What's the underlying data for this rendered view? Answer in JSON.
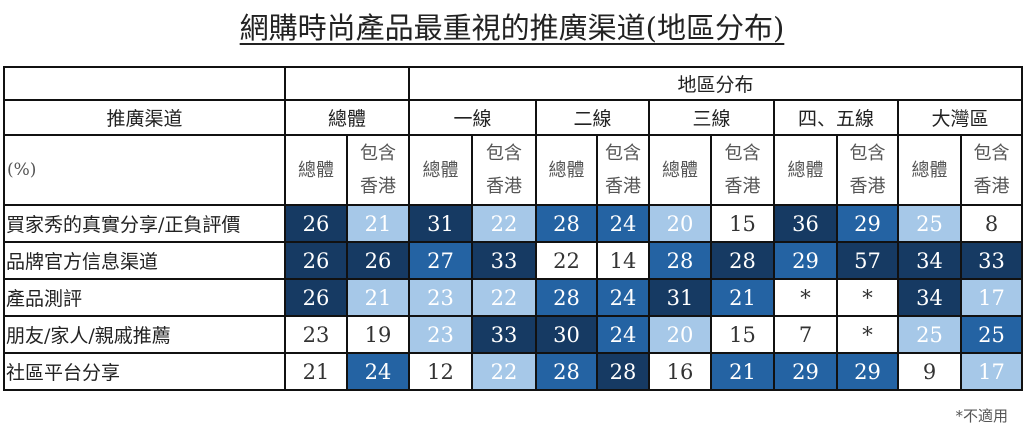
{
  "title": "網購時尚產品最重視的推廣渠道(地區分布)",
  "header": {
    "region_group": "地區分布",
    "channel_col": "推廣渠道",
    "unit": "(%)",
    "groups": [
      "總體",
      "一線",
      "二線",
      "三線",
      "四、五線",
      "大灣區"
    ],
    "sub_total": "總體",
    "sub_hk": "包含香港"
  },
  "legend_colors": {
    "level0_white": "#ffffff",
    "level1_light": "#a6c8e8",
    "level2_mid": "#2463a3",
    "level3_dark": "#163a63"
  },
  "rows": [
    {
      "label": "買家秀的真實分享/正負評價",
      "values": [
        "26",
        "21",
        "31",
        "22",
        "28",
        "24",
        "20",
        "15",
        "36",
        "29",
        "25",
        "8"
      ],
      "levels": [
        3,
        1,
        3,
        1,
        2,
        2,
        1,
        0,
        3,
        2,
        1,
        0
      ]
    },
    {
      "label": "品牌官方信息渠道",
      "values": [
        "26",
        "26",
        "27",
        "33",
        "22",
        "14",
        "28",
        "28",
        "29",
        "57",
        "34",
        "33"
      ],
      "levels": [
        3,
        3,
        2,
        3,
        0,
        0,
        2,
        3,
        2,
        3,
        3,
        3
      ]
    },
    {
      "label": "產品測評",
      "values": [
        "26",
        "21",
        "23",
        "22",
        "28",
        "24",
        "31",
        "21",
        "*",
        "*",
        "34",
        "17"
      ],
      "levels": [
        3,
        1,
        1,
        1,
        2,
        2,
        3,
        2,
        0,
        0,
        3,
        1
      ]
    },
    {
      "label": "朋友/家人/親戚推薦",
      "values": [
        "23",
        "19",
        "23",
        "33",
        "30",
        "24",
        "20",
        "15",
        "7",
        "*",
        "25",
        "25"
      ],
      "levels": [
        0,
        0,
        1,
        3,
        3,
        2,
        1,
        0,
        0,
        0,
        1,
        2
      ]
    },
    {
      "label": "社區平台分享",
      "values": [
        "21",
        "24",
        "12",
        "22",
        "28",
        "28",
        "16",
        "21",
        "29",
        "29",
        "9",
        "17"
      ],
      "levels": [
        0,
        2,
        0,
        1,
        2,
        3,
        0,
        2,
        2,
        2,
        0,
        1
      ]
    }
  ],
  "footnote": "*不適用"
}
